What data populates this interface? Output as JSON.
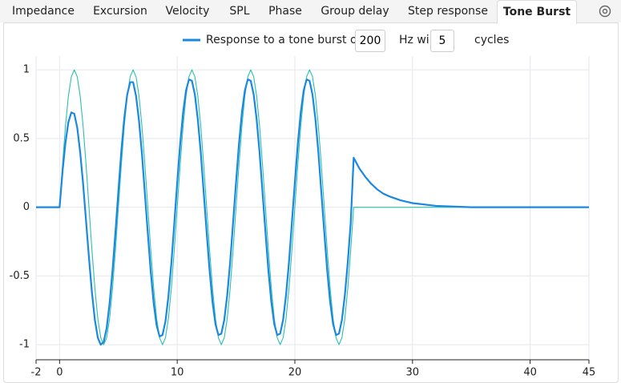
{
  "tabs": [
    "Impedance",
    "Excursion",
    "Velocity",
    "SPL",
    "Phase",
    "Group delay",
    "Step response",
    "Tone Burst"
  ],
  "active_tab": "Tone Burst",
  "controls": {
    "frequency": "200",
    "frequency_unit": "Hz wi",
    "cycles": "5",
    "cycles_unit": "cycles"
  },
  "chart_data": {
    "type": "line",
    "x": [
      -2,
      0,
      0.25,
      0.5,
      0.75,
      1,
      1.25,
      1.5,
      1.75,
      2,
      2.25,
      2.5,
      2.75,
      3,
      3.25,
      3.5,
      3.75,
      4,
      4.25,
      4.5,
      4.75,
      5,
      5.25,
      5.5,
      5.75,
      6,
      6.25,
      6.5,
      6.75,
      7,
      7.25,
      7.5,
      7.75,
      8,
      8.25,
      8.5,
      8.75,
      9,
      9.25,
      9.5,
      9.75,
      10,
      10.25,
      10.5,
      10.75,
      11,
      11.25,
      11.5,
      11.75,
      12,
      12.25,
      12.5,
      12.75,
      13,
      13.25,
      13.5,
      13.75,
      14,
      14.25,
      14.5,
      14.75,
      15,
      15.25,
      15.5,
      15.75,
      16,
      16.25,
      16.5,
      16.75,
      17,
      17.25,
      17.5,
      17.75,
      18,
      18.25,
      18.5,
      18.75,
      19,
      19.25,
      19.5,
      19.75,
      20,
      20.25,
      20.5,
      20.75,
      21,
      21.25,
      21.5,
      21.75,
      22,
      22.25,
      22.5,
      22.75,
      23,
      23.25,
      23.5,
      23.75,
      24,
      24.25,
      24.5,
      24.75,
      25,
      25.5,
      26,
      26.5,
      27,
      27.5,
      28,
      29,
      30,
      32,
      35,
      40,
      45
    ],
    "series": [
      {
        "name": "Response to a tone burst of",
        "color": "#1a88e0",
        "width": 2.2,
        "values": [
          0,
          0,
          0.26,
          0.47,
          0.62,
          0.69,
          0.68,
          0.58,
          0.4,
          0.17,
          -0.1,
          -0.37,
          -0.62,
          -0.82,
          -0.95,
          -1.0,
          -0.98,
          -0.88,
          -0.7,
          -0.46,
          -0.18,
          0.12,
          0.41,
          0.65,
          0.82,
          0.91,
          0.91,
          0.81,
          0.63,
          0.39,
          0.1,
          -0.19,
          -0.47,
          -0.7,
          -0.86,
          -0.94,
          -0.93,
          -0.83,
          -0.65,
          -0.41,
          -0.12,
          0.18,
          0.46,
          0.69,
          0.85,
          0.93,
          0.92,
          0.82,
          0.64,
          0.4,
          0.11,
          -0.18,
          -0.46,
          -0.69,
          -0.85,
          -0.93,
          -0.92,
          -0.82,
          -0.64,
          -0.4,
          -0.11,
          0.18,
          0.46,
          0.69,
          0.85,
          0.93,
          0.92,
          0.82,
          0.64,
          0.4,
          0.11,
          -0.18,
          -0.46,
          -0.69,
          -0.85,
          -0.93,
          -0.92,
          -0.82,
          -0.64,
          -0.4,
          -0.11,
          0.18,
          0.46,
          0.69,
          0.85,
          0.93,
          0.92,
          0.82,
          0.64,
          0.4,
          0.11,
          -0.18,
          -0.46,
          -0.69,
          -0.85,
          -0.93,
          -0.92,
          -0.82,
          -0.64,
          -0.4,
          -0.11,
          0.36,
          0.28,
          0.22,
          0.17,
          0.13,
          0.1,
          0.08,
          0.05,
          0.03,
          0.01,
          0,
          0,
          0
        ]
      },
      {
        "color": "#2bbfae",
        "width": 1.1,
        "values": [
          0,
          0,
          0.31,
          0.59,
          0.81,
          0.95,
          1,
          0.95,
          0.81,
          0.59,
          0.31,
          0,
          -0.31,
          -0.59,
          -0.81,
          -0.95,
          -1,
          -0.95,
          -0.81,
          -0.59,
          -0.31,
          0,
          0.31,
          0.59,
          0.81,
          0.95,
          1,
          0.95,
          0.81,
          0.59,
          0.31,
          0,
          -0.31,
          -0.59,
          -0.81,
          -0.95,
          -1,
          -0.95,
          -0.81,
          -0.59,
          -0.31,
          0,
          0.31,
          0.59,
          0.81,
          0.95,
          1,
          0.95,
          0.81,
          0.59,
          0.31,
          0,
          -0.31,
          -0.59,
          -0.81,
          -0.95,
          -1,
          -0.95,
          -0.81,
          -0.59,
          -0.31,
          0,
          0.31,
          0.59,
          0.81,
          0.95,
          1,
          0.95,
          0.81,
          0.59,
          0.31,
          0,
          -0.31,
          -0.59,
          -0.81,
          -0.95,
          -1,
          -0.95,
          -0.81,
          -0.59,
          -0.31,
          0,
          0.31,
          0.59,
          0.81,
          0.95,
          1,
          0.95,
          0.81,
          0.59,
          0.31,
          0,
          -0.31,
          -0.59,
          -0.81,
          -0.95,
          -1,
          -0.95,
          -0.81,
          -0.59,
          -0.31,
          0,
          0,
          0,
          0,
          0,
          0,
          0,
          0,
          0,
          0,
          0,
          0,
          0
        ]
      }
    ],
    "xlim": [
      -2,
      45
    ],
    "xticks": [
      -2,
      0,
      10,
      20,
      30,
      40,
      45
    ],
    "ylim": [
      -1.11,
      1.1
    ],
    "yticks": [
      1,
      0.5,
      0,
      -0.5,
      -1
    ],
    "grid": true
  }
}
